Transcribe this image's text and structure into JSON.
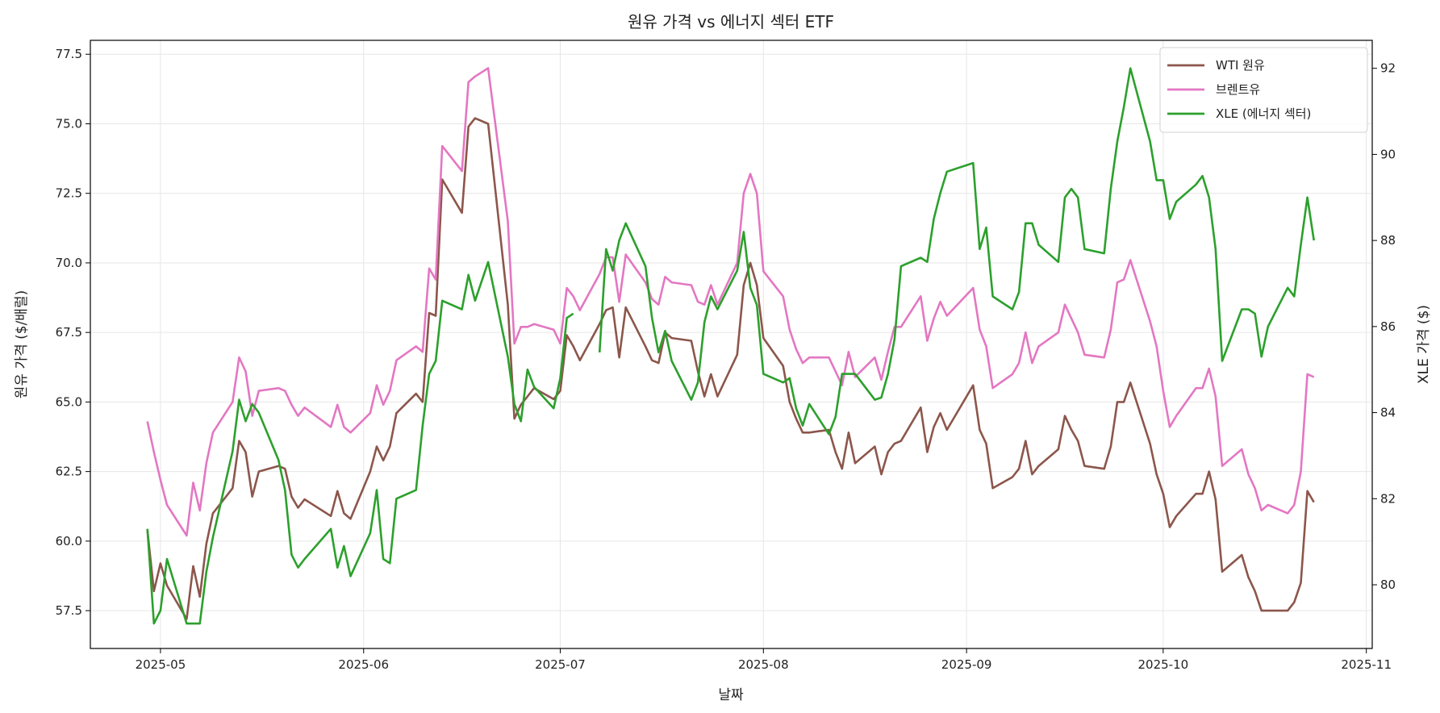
{
  "chart_data": {
    "type": "line",
    "title": "원유 가격 vs 에너지 섹터 ETF",
    "xlabel": "날짜",
    "ylabel": "원유 가격 ($/배럴)",
    "ylabel_right": "XLE 가격 ($)",
    "xlim": [
      "2025-04-20",
      "2025-11-02"
    ],
    "ylim": [
      56.14,
      78.0
    ],
    "ylim_right": [
      78.52,
      92.65
    ],
    "grid": true,
    "legend_position": "top-right",
    "x_ticks": [
      {
        "date": "2025-05-01",
        "label": "2025-05"
      },
      {
        "date": "2025-06-01",
        "label": "2025-06"
      },
      {
        "date": "2025-07-01",
        "label": "2025-07"
      },
      {
        "date": "2025-08-01",
        "label": "2025-08"
      },
      {
        "date": "2025-09-01",
        "label": "2025-09"
      },
      {
        "date": "2025-10-01",
        "label": "2025-10"
      },
      {
        "date": "2025-11-01",
        "label": "2025-11"
      }
    ],
    "y_ticks": [
      {
        "value": 57.5,
        "label": "57.5"
      },
      {
        "value": 60,
        "label": "60.0"
      },
      {
        "value": 62.5,
        "label": "62.5"
      },
      {
        "value": 65,
        "label": "65.0"
      },
      {
        "value": 67.5,
        "label": "67.5"
      },
      {
        "value": 70,
        "label": "70.0"
      },
      {
        "value": 72.5,
        "label": "72.5"
      },
      {
        "value": 75,
        "label": "75.0"
      },
      {
        "value": 77.5,
        "label": "77.5"
      }
    ],
    "y_ticks_right": [
      {
        "value": 80,
        "label": "80"
      },
      {
        "value": 82,
        "label": "82"
      },
      {
        "value": 84,
        "label": "84"
      },
      {
        "value": 86,
        "label": "86"
      },
      {
        "value": 88,
        "label": "88"
      },
      {
        "value": 90,
        "label": "90"
      },
      {
        "value": 92,
        "label": "92"
      }
    ],
    "x": [
      "2025-04-29",
      "2025-04-30",
      "2025-05-01",
      "2025-05-02",
      "2025-05-05",
      "2025-05-06",
      "2025-05-07",
      "2025-05-08",
      "2025-05-09",
      "2025-05-12",
      "2025-05-13",
      "2025-05-14",
      "2025-05-15",
      "2025-05-16",
      "2025-05-19",
      "2025-05-20",
      "2025-05-21",
      "2025-05-22",
      "2025-05-23",
      "2025-05-27",
      "2025-05-28",
      "2025-05-29",
      "2025-05-30",
      "2025-06-02",
      "2025-06-03",
      "2025-06-04",
      "2025-06-05",
      "2025-06-06",
      "2025-06-09",
      "2025-06-10",
      "2025-06-11",
      "2025-06-12",
      "2025-06-13",
      "2025-06-16",
      "2025-06-17",
      "2025-06-18",
      "2025-06-20",
      "2025-06-23",
      "2025-06-24",
      "2025-06-25",
      "2025-06-26",
      "2025-06-27",
      "2025-06-30",
      "2025-07-01",
      "2025-07-02",
      "2025-07-03",
      "2025-07-04",
      "2025-07-07",
      "2025-07-08",
      "2025-07-09",
      "2025-07-10",
      "2025-07-11",
      "2025-07-14",
      "2025-07-15",
      "2025-07-16",
      "2025-07-17",
      "2025-07-18",
      "2025-07-21",
      "2025-07-22",
      "2025-07-23",
      "2025-07-24",
      "2025-07-25",
      "2025-07-28",
      "2025-07-29",
      "2025-07-30",
      "2025-07-31",
      "2025-08-01",
      "2025-08-04",
      "2025-08-05",
      "2025-08-06",
      "2025-08-07",
      "2025-08-08",
      "2025-08-11",
      "2025-08-12",
      "2025-08-13",
      "2025-08-14",
      "2025-08-15",
      "2025-08-18",
      "2025-08-19",
      "2025-08-20",
      "2025-08-21",
      "2025-08-22",
      "2025-08-25",
      "2025-08-26",
      "2025-08-27",
      "2025-08-28",
      "2025-08-29",
      "2025-09-02",
      "2025-09-03",
      "2025-09-04",
      "2025-09-05",
      "2025-09-08",
      "2025-09-09",
      "2025-09-10",
      "2025-09-11",
      "2025-09-12",
      "2025-09-15",
      "2025-09-16",
      "2025-09-17",
      "2025-09-18",
      "2025-09-19",
      "2025-09-22",
      "2025-09-23",
      "2025-09-24",
      "2025-09-25",
      "2025-09-26",
      "2025-09-29",
      "2025-09-30",
      "2025-10-01",
      "2025-10-02",
      "2025-10-03",
      "2025-10-06",
      "2025-10-07",
      "2025-10-08",
      "2025-10-09",
      "2025-10-10",
      "2025-10-13",
      "2025-10-14",
      "2025-10-15",
      "2025-10-16",
      "2025-10-17",
      "2025-10-20",
      "2025-10-21",
      "2025-10-22",
      "2025-10-23",
      "2025-10-24"
    ],
    "series": [
      {
        "name": "WTI 원유",
        "axis": "left",
        "color": "#8c564b",
        "values": [
          60.4,
          58.2,
          59.2,
          58.4,
          57.2,
          59.1,
          58.0,
          59.9,
          61.0,
          61.9,
          63.6,
          63.2,
          61.6,
          62.5,
          62.7,
          62.6,
          61.6,
          61.2,
          61.5,
          60.9,
          61.8,
          61.0,
          60.8,
          62.5,
          63.4,
          62.9,
          63.4,
          64.6,
          65.3,
          65.0,
          68.2,
          68.1,
          73.0,
          71.8,
          74.9,
          75.2,
          75.0,
          68.5,
          64.4,
          64.9,
          65.2,
          65.5,
          65.1,
          65.4,
          67.4,
          67.0,
          66.5,
          67.8,
          68.3,
          68.4,
          66.6,
          68.4,
          67.0,
          66.5,
          66.4,
          67.5,
          67.3,
          67.2,
          66.1,
          65.2,
          66.0,
          65.2,
          66.7,
          69.2,
          70.0,
          69.2,
          67.3,
          66.3,
          65.0,
          64.4,
          63.9,
          63.9,
          64.0,
          63.2,
          62.6,
          63.9,
          62.8,
          63.4,
          62.4,
          63.2,
          63.5,
          63.6,
          64.8,
          63.2,
          64.1,
          64.6,
          64.0,
          65.6,
          64.0,
          63.5,
          61.9,
          62.3,
          62.6,
          63.6,
          62.4,
          62.7,
          63.3,
          64.5,
          64.0,
          63.6,
          62.7,
          62.6,
          63.4,
          65.0,
          65.0,
          65.7,
          63.5,
          62.4,
          61.7,
          60.5,
          60.9,
          61.7,
          61.7,
          62.5,
          61.5,
          58.9,
          59.5,
          58.7,
          58.2,
          57.5,
          57.5,
          57.5,
          57.8,
          58.5,
          61.8,
          61.4
        ]
      },
      {
        "name": "브렌트유",
        "axis": "left",
        "color": "#e377c2",
        "values": [
          64.3,
          63.2,
          62.2,
          61.3,
          60.2,
          62.1,
          61.1,
          62.8,
          63.9,
          65.0,
          66.6,
          66.1,
          64.5,
          65.4,
          65.5,
          65.4,
          64.9,
          64.5,
          64.8,
          64.1,
          64.9,
          64.1,
          63.9,
          64.6,
          65.6,
          64.9,
          65.4,
          66.5,
          67.0,
          66.8,
          69.8,
          69.4,
          74.2,
          73.3,
          76.5,
          76.7,
          77.0,
          71.5,
          67.1,
          67.7,
          67.7,
          67.8,
          67.6,
          67.1,
          69.1,
          68.8,
          68.3,
          69.6,
          70.2,
          70.2,
          68.6,
          70.3,
          69.3,
          68.7,
          68.5,
          69.5,
          69.3,
          69.2,
          68.6,
          68.5,
          69.2,
          68.5,
          70.0,
          72.5,
          73.2,
          72.5,
          69.7,
          68.8,
          67.6,
          66.9,
          66.4,
          66.6,
          66.6,
          66.1,
          65.6,
          66.8,
          65.9,
          66.6,
          65.8,
          66.8,
          67.7,
          67.7,
          68.8,
          67.2,
          68.0,
          68.6,
          68.1,
          69.1,
          67.6,
          67.0,
          65.5,
          66.0,
          66.4,
          67.5,
          66.4,
          67.0,
          67.5,
          68.5,
          68.0,
          67.5,
          66.7,
          66.6,
          67.6,
          69.3,
          69.4,
          70.1,
          67.9,
          67.0,
          65.4,
          64.1,
          64.5,
          65.5,
          65.5,
          66.2,
          65.2,
          62.7,
          63.3,
          62.4,
          61.9,
          61.1,
          61.3,
          61.0,
          61.3,
          62.5,
          66.0,
          65.9
        ]
      },
      {
        "name": "XLE (에너지 섹터)",
        "axis": "right",
        "color": "#2ca02c",
        "values": [
          81.3,
          79.1,
          79.4,
          80.6,
          79.1,
          79.1,
          79.1,
          80.3,
          81.1,
          83.1,
          84.3,
          83.8,
          84.2,
          84.0,
          82.9,
          82.2,
          80.7,
          80.4,
          80.6,
          81.3,
          80.4,
          80.9,
          80.2,
          81.2,
          82.2,
          80.6,
          80.5,
          82.0,
          82.2,
          83.7,
          84.9,
          85.2,
          86.6,
          86.4,
          87.2,
          86.6,
          87.5,
          85.3,
          84.2,
          83.8,
          85.0,
          84.6,
          84.1,
          84.8,
          86.2,
          86.3,
          null,
          85.4,
          87.8,
          87.3,
          88.0,
          88.4,
          87.4,
          86.2,
          85.4,
          85.9,
          85.2,
          84.3,
          84.7,
          86.1,
          86.7,
          86.4,
          87.3,
          88.2,
          86.9,
          86.5,
          84.9,
          84.7,
          84.8,
          84.1,
          83.7,
          84.2,
          83.5,
          83.9,
          84.9,
          84.9,
          84.9,
          84.3,
          84.35,
          84.9,
          85.7,
          87.4,
          87.6,
          87.5,
          88.5,
          89.1,
          89.6,
          89.8,
          87.8,
          88.3,
          86.7,
          86.4,
          86.8,
          88.4,
          88.4,
          87.9,
          87.5,
          89.0,
          89.2,
          89.0,
          87.8,
          87.7,
          89.2,
          90.3,
          91.1,
          92.0,
          90.3,
          89.4,
          89.4,
          88.5,
          88.9,
          89.3,
          89.5,
          89.0,
          87.8,
          85.2,
          86.4,
          86.4,
          86.3,
          85.3,
          86.0,
          86.9,
          86.7,
          87.9,
          89.0,
          88.0
        ]
      }
    ]
  }
}
